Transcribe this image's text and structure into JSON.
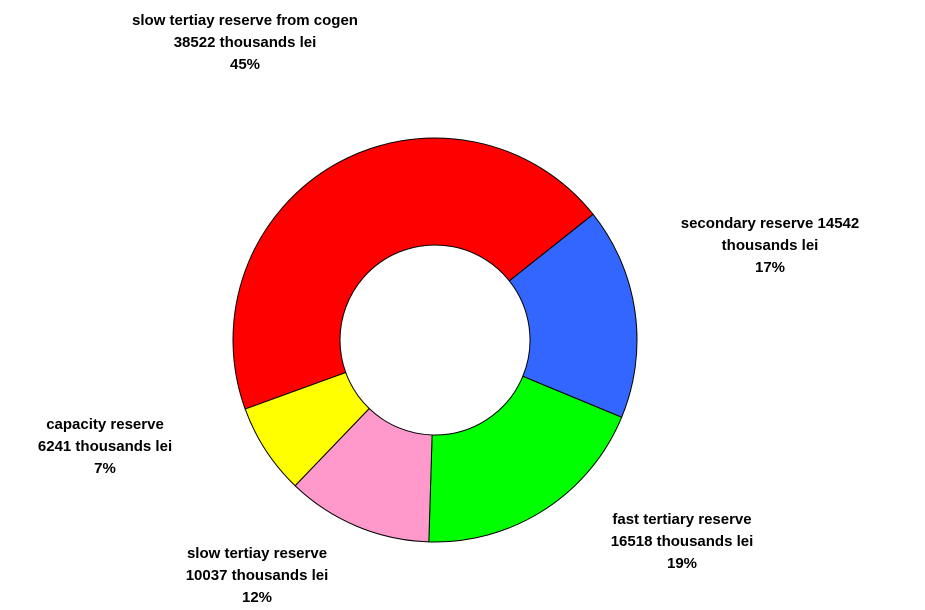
{
  "chart_data": {
    "type": "donut",
    "categories": [
      "slow tertiay reserve from cogen",
      "secondary reserve",
      "fast tertiary reserve",
      "slow tertiay reserve",
      "capacity reserve"
    ],
    "values": [
      38522,
      14542,
      16518,
      10037,
      6241
    ],
    "value_labels": [
      "38522 thousands lei",
      "14542 thousands lei",
      "16518 thousands lei",
      "10037 thousands lei",
      "6241 thousands lei"
    ],
    "percent_labels": [
      "45%",
      "17%",
      "19%",
      "12%",
      "7%"
    ],
    "colors": [
      "#ff0000",
      "#3366ff",
      "#00ff00",
      "#ff99cc",
      "#ffff00"
    ]
  }
}
